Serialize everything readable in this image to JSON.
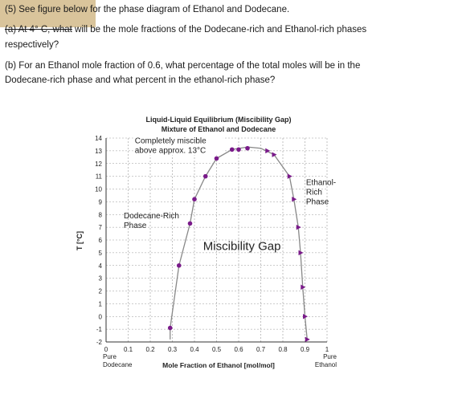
{
  "question": {
    "line1": "(5) See figure below for the phase diagram of Ethanol and Dodecane.",
    "part_a_struck": "(a) At 4° C, what",
    "part_a_rest": " will be the mole fractions of the Dodecane-rich and Ethanol-rich phases",
    "part_a_line2": "respectively?",
    "part_b_line1": "(b) For an Ethanol mole fraction of 0.6, what percentage of the total moles will be in the",
    "part_b_line2": "Dodecane-rich phase and what percent in the ethanol-rich phase?"
  },
  "colors": {
    "highlight": "#d9c49b",
    "marker": "#7a1a8a",
    "curve": "#888888",
    "grid": "#999999"
  },
  "chart_data": {
    "type": "scatter",
    "title": "Liquid-Liquid Equilibrium (Miscibility Gap)",
    "subtitle": "Mixture of Ethanol and Dodecane",
    "xlabel": "Mole Fraction of Ethanol [mol/mol]",
    "ylabel": "T [°C]",
    "xlim": [
      0,
      1
    ],
    "ylim": [
      -2,
      14
    ],
    "x_ticks": [
      "0",
      "0.1",
      "0.2",
      "0.3",
      "0.4",
      "0.5",
      "0.6",
      "0.7",
      "0.8",
      "0.9",
      "1"
    ],
    "y_ticks": [
      "14",
      "13",
      "12",
      "11",
      "10",
      "9",
      "8",
      "7",
      "6",
      "5",
      "4",
      "3",
      "2",
      "1",
      "0",
      "-1",
      "-2"
    ],
    "x_end_labels": {
      "left": [
        "Pure",
        "Dodecane"
      ],
      "right": [
        "Pure",
        "Ethanol"
      ]
    },
    "grid": true,
    "annotations": {
      "top": [
        "Completely miscible",
        "above approx. 13°C"
      ],
      "dodecane_rich": [
        "Dodecane-Rich",
        "Phase"
      ],
      "ethanol_rich": [
        "Ethanol-",
        "Rich",
        "Phase"
      ],
      "gap": "Miscibility Gap"
    },
    "series": [
      {
        "marker": "circle",
        "points": [
          [
            0.29,
            -0.9
          ],
          [
            0.33,
            4.0
          ],
          [
            0.38,
            7.3
          ],
          [
            0.4,
            9.2
          ],
          [
            0.45,
            11.0
          ],
          [
            0.5,
            12.4
          ],
          [
            0.57,
            13.1
          ],
          [
            0.6,
            13.1
          ],
          [
            0.64,
            13.2
          ]
        ]
      },
      {
        "marker": "triangle",
        "points": [
          [
            0.73,
            13.0
          ],
          [
            0.76,
            12.7
          ],
          [
            0.83,
            11.0
          ],
          [
            0.85,
            9.2
          ],
          [
            0.87,
            7.0
          ],
          [
            0.88,
            5.0
          ],
          [
            0.89,
            2.3
          ],
          [
            0.9,
            0.0
          ],
          [
            0.91,
            -1.8
          ]
        ]
      }
    ],
    "curve": [
      [
        0.29,
        -1.8
      ],
      [
        0.29,
        -0.9
      ],
      [
        0.33,
        4.0
      ],
      [
        0.38,
        7.3
      ],
      [
        0.4,
        9.2
      ],
      [
        0.45,
        11.0
      ],
      [
        0.5,
        12.4
      ],
      [
        0.57,
        13.1
      ],
      [
        0.64,
        13.3
      ],
      [
        0.7,
        13.2
      ],
      [
        0.76,
        12.7
      ],
      [
        0.83,
        11.0
      ],
      [
        0.85,
        9.2
      ],
      [
        0.87,
        7.0
      ],
      [
        0.88,
        5.0
      ],
      [
        0.89,
        2.3
      ],
      [
        0.9,
        0.0
      ],
      [
        0.91,
        -1.8
      ]
    ]
  }
}
